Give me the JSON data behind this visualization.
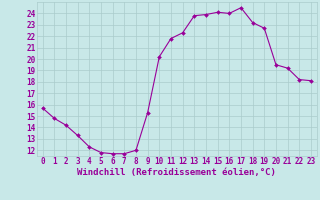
{
  "x": [
    0,
    1,
    2,
    3,
    4,
    5,
    6,
    7,
    8,
    9,
    10,
    11,
    12,
    13,
    14,
    15,
    16,
    17,
    18,
    19,
    20,
    21,
    22,
    23
  ],
  "y": [
    15.7,
    14.8,
    14.2,
    13.3,
    12.3,
    11.8,
    11.7,
    11.7,
    12.0,
    15.3,
    20.2,
    21.8,
    22.3,
    23.8,
    23.9,
    24.1,
    24.0,
    24.5,
    23.2,
    22.7,
    19.5,
    19.2,
    18.2,
    18.1
  ],
  "line_color": "#990099",
  "marker": "D",
  "marker_size": 2.0,
  "bg_color": "#c8e8e8",
  "grid_color": "#aacccc",
  "ylabel_values": [
    12,
    13,
    14,
    15,
    16,
    17,
    18,
    19,
    20,
    21,
    22,
    23,
    24
  ],
  "ylim": [
    11.5,
    25.0
  ],
  "xlim": [
    -0.5,
    23.5
  ],
  "xlabel": "Windchill (Refroidissement éolien,°C)",
  "xlabel_color": "#990099",
  "tick_color": "#990099",
  "tick_fontsize": 5.5,
  "xlabel_fontsize": 6.5,
  "linewidth": 0.8
}
